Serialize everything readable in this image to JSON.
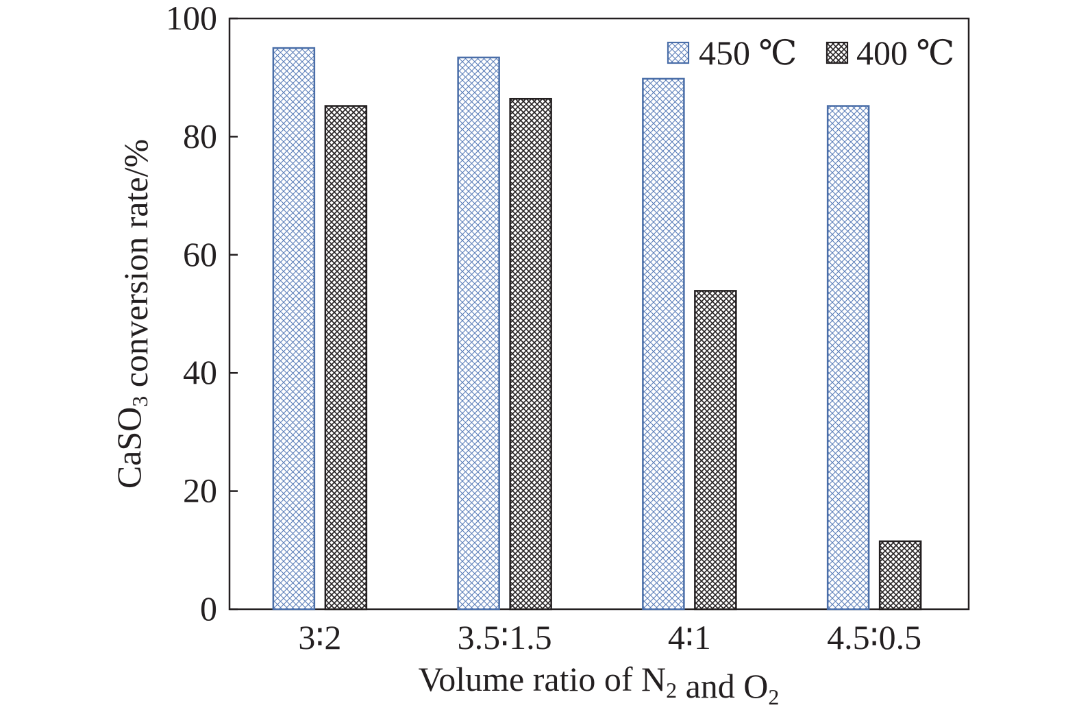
{
  "chart_data": {
    "type": "bar",
    "title": "",
    "xlabel": {
      "parts": [
        {
          "text": "Volume ratio of N",
          "sub": false
        },
        {
          "text": "2",
          "sub": true
        },
        {
          "text": " and O",
          "sub": false
        },
        {
          "text": "2",
          "sub": true
        }
      ]
    },
    "ylabel": {
      "parts": [
        {
          "text": "CaSO",
          "sub": false
        },
        {
          "text": "3",
          "sub": true
        },
        {
          "text": " conversion rate/%",
          "sub": false
        }
      ]
    },
    "categories": [
      "3∶2",
      "3.5∶1.5",
      "4∶1",
      "4.5∶0.5"
    ],
    "ylim": [
      0,
      100
    ],
    "yticks": [
      0,
      20,
      40,
      60,
      80,
      100
    ],
    "grid": false,
    "legend_position": "top-right",
    "series": [
      {
        "name": "450 ℃",
        "values": [
          95.0,
          93.4,
          89.8,
          85.2
        ],
        "color": "#4a6ea8",
        "pattern": "crosshatch"
      },
      {
        "name": "400 ℃",
        "values": [
          85.2,
          86.4,
          53.9,
          11.5
        ],
        "color": "#231f20",
        "pattern": "crosshatch"
      }
    ]
  }
}
